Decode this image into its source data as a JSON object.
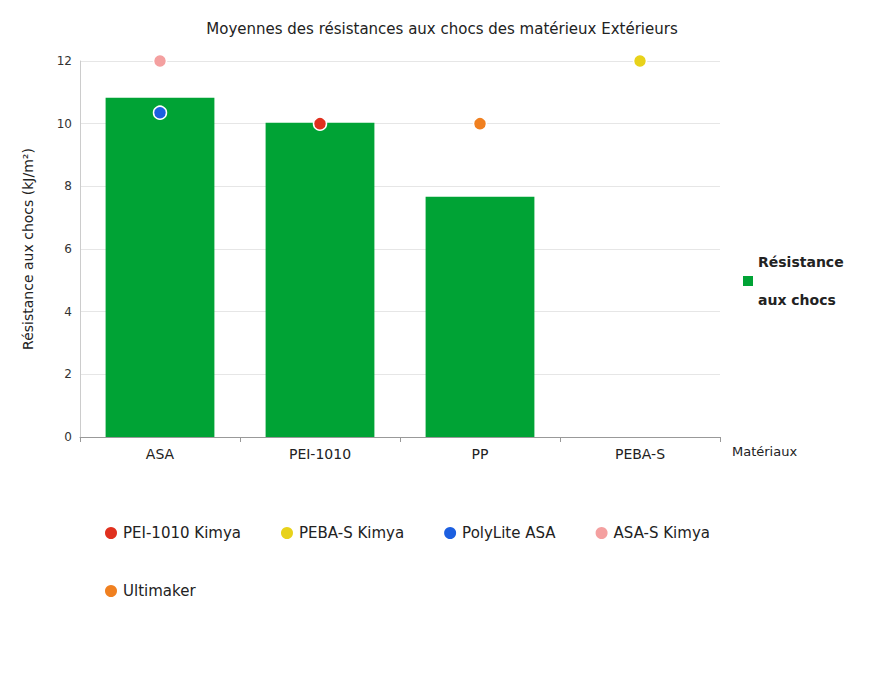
{
  "chart_data": {
    "type": "bar",
    "title": "Moyennes des résistances aux chocs des matérieux Extérieurs",
    "x_label": "Matériaux",
    "y_label": "Résistance aux chocs (kJ/m²)",
    "categories": [
      "ASA",
      "PEI-1010",
      "PP",
      "PEBA-S"
    ],
    "series": [
      {
        "name": "Résistance aux chocs",
        "type": "bar",
        "color": "#00a335",
        "values": [
          10.83,
          10.03,
          7.67,
          null
        ]
      },
      {
        "name": "PEI-1010 Kimya",
        "type": "scatter",
        "marker": "circle",
        "color": "#e0301e",
        "values": [
          null,
          10,
          null,
          null
        ]
      },
      {
        "name": "PEBA-S Kimya",
        "type": "scatter",
        "marker": "circle",
        "color": "#e8d21a",
        "values": [
          null,
          null,
          null,
          12
        ]
      },
      {
        "name": "PolyLite ASA",
        "type": "scatter",
        "marker": "circle",
        "color": "#1c5fe0",
        "values": [
          10.35,
          null,
          null,
          null
        ]
      },
      {
        "name": "ASA-S Kimya",
        "type": "scatter",
        "marker": "circle",
        "color": "#f4a0a0",
        "values": [
          12,
          null,
          null,
          null
        ]
      },
      {
        "name": "Ultimaker",
        "type": "scatter",
        "marker": "circle",
        "color": "#f08020",
        "values": [
          null,
          null,
          10,
          null
        ]
      }
    ],
    "ylim": [
      0,
      12
    ],
    "yticks": [
      0,
      2,
      4,
      6,
      8,
      10,
      12
    ],
    "grid": true,
    "legend": "bottom"
  }
}
